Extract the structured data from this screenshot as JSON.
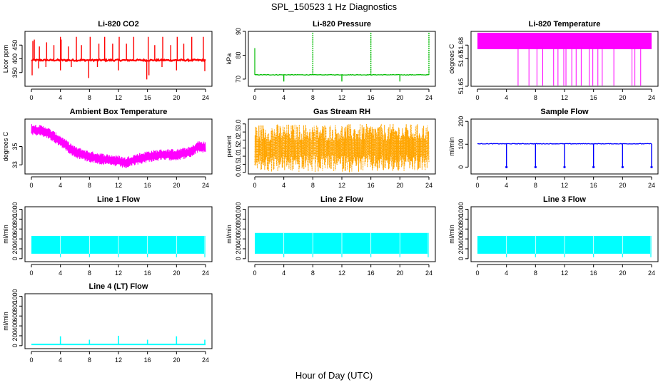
{
  "figure": {
    "title": "SPL_150523  1 Hz Diagnostics",
    "xlabel": "Hour of Day (UTC)"
  },
  "chart_data": [
    {
      "type": "line",
      "title": "Li-820 CO2",
      "ylabel": "Licor ppm",
      "color": "#ff0000",
      "xlim": [
        0,
        24
      ],
      "ylim": [
        300,
        500
      ],
      "xticks": [
        "0",
        "4",
        "8",
        "12",
        "16",
        "20",
        "24"
      ],
      "yticks": [
        {
          "v": 350,
          "label": "350"
        },
        {
          "v": 400,
          "label": "400"
        },
        {
          "v": 450,
          "label": "450"
        }
      ],
      "baseline": 395,
      "noise": 10,
      "spikes": [
        {
          "x": 0.2,
          "y": 465
        },
        {
          "x": 0.4,
          "y": 470
        },
        {
          "x": 1.1,
          "y": 445
        },
        {
          "x": 2.1,
          "y": 460
        },
        {
          "x": 3.1,
          "y": 450
        },
        {
          "x": 4.0,
          "y": 480
        },
        {
          "x": 4.1,
          "y": 470
        },
        {
          "x": 5.1,
          "y": 445
        },
        {
          "x": 6.2,
          "y": 480
        },
        {
          "x": 6.9,
          "y": 450
        },
        {
          "x": 8.1,
          "y": 480
        },
        {
          "x": 9.3,
          "y": 455
        },
        {
          "x": 10.1,
          "y": 480
        },
        {
          "x": 11.2,
          "y": 455
        },
        {
          "x": 12.1,
          "y": 480
        },
        {
          "x": 13.1,
          "y": 455
        },
        {
          "x": 14.1,
          "y": 480
        },
        {
          "x": 16.1,
          "y": 480
        },
        {
          "x": 17.0,
          "y": 450
        },
        {
          "x": 18.1,
          "y": 480
        },
        {
          "x": 19.2,
          "y": 450
        },
        {
          "x": 20.1,
          "y": 480
        },
        {
          "x": 21.0,
          "y": 455
        },
        {
          "x": 22.1,
          "y": 480
        },
        {
          "x": 23.7,
          "y": 480
        }
      ],
      "dips": [
        {
          "x": 0.1,
          "y": 340
        },
        {
          "x": 1.0,
          "y": 365
        },
        {
          "x": 2.0,
          "y": 370
        },
        {
          "x": 4.0,
          "y": 358
        },
        {
          "x": 5.5,
          "y": 370
        },
        {
          "x": 7.9,
          "y": 330
        },
        {
          "x": 9.1,
          "y": 370
        },
        {
          "x": 12.0,
          "y": 358
        },
        {
          "x": 15.9,
          "y": 325
        },
        {
          "x": 16.2,
          "y": 340
        },
        {
          "x": 18.0,
          "y": 370
        },
        {
          "x": 20.0,
          "y": 358
        },
        {
          "x": 23.9,
          "y": 355
        }
      ]
    },
    {
      "type": "line",
      "title": "Li-820 Pressure",
      "ylabel": "kPa",
      "color": "#00bb00",
      "xlim": [
        0,
        24
      ],
      "ylim": [
        67,
        90
      ],
      "xticks": [
        "0",
        "4",
        "8",
        "12",
        "16",
        "20",
        "24"
      ],
      "yticks": [
        {
          "v": 70,
          "label": "70"
        },
        {
          "v": 80,
          "label": "80"
        },
        {
          "v": 90,
          "label": "90"
        }
      ],
      "baseline": 71.8,
      "initial": 83,
      "spikes": [
        {
          "x": 8.0,
          "y": 90
        },
        {
          "x": 16.0,
          "y": 90
        },
        {
          "x": 24.0,
          "y": 90
        }
      ],
      "dips": [
        {
          "x": 4.0,
          "y": 69
        },
        {
          "x": 12.0,
          "y": 69
        },
        {
          "x": 20.0,
          "y": 69
        }
      ]
    },
    {
      "type": "line",
      "title": "Li-820 Temperature",
      "ylabel": "degrees C",
      "color": "#ff00ff",
      "xlim": [
        0,
        24
      ],
      "ylim": [
        51.65,
        51.69
      ],
      "xticks": [
        "0",
        "4",
        "8",
        "12",
        "16",
        "20",
        "24"
      ],
      "yticks": [
        {
          "v": 51.65,
          "label": "51.65"
        },
        {
          "v": 51.67,
          "label": "51.67"
        },
        {
          "v": 51.68,
          "label": "51.68"
        }
      ],
      "band": [
        51.677,
        51.689
      ],
      "drops": [
        5.6,
        7.1,
        8.2,
        9.0,
        10.5,
        11.1,
        11.9,
        12.2,
        13.0,
        13.6,
        14.3,
        15.4,
        15.9,
        16.6,
        17.2,
        18.8,
        21.3,
        21.7,
        22.5
      ]
    },
    {
      "type": "line",
      "title": "Ambient Box Temperature",
      "ylabel": "degrees C",
      "color": "#ff00ff",
      "xlim": [
        0,
        24
      ],
      "ylim": [
        32,
        38
      ],
      "xticks": [
        "0",
        "4",
        "8",
        "12",
        "16",
        "20",
        "24"
      ],
      "yticks": [
        {
          "v": 33,
          "label": "33"
        },
        {
          "v": 35,
          "label": "35"
        }
      ],
      "curve": [
        [
          0,
          36.9
        ],
        [
          2,
          36.6
        ],
        [
          4,
          35.6
        ],
        [
          6,
          34.4
        ],
        [
          8,
          33.9
        ],
        [
          10,
          33.6
        ],
        [
          12,
          33.4
        ],
        [
          13,
          33.2
        ],
        [
          14,
          33.5
        ],
        [
          16,
          33.9
        ],
        [
          18,
          34.1
        ],
        [
          20,
          34.1
        ],
        [
          22,
          34.4
        ],
        [
          23,
          35.0
        ],
        [
          24,
          34.9
        ]
      ],
      "spread": 0.9
    },
    {
      "type": "line",
      "title": "Gas Stream RH",
      "ylabel": "percent",
      "color": "#ffa500",
      "xlim": [
        0,
        24
      ],
      "ylim": [
        -0.1,
        3.3
      ],
      "xticks": [
        "0",
        "4",
        "8",
        "12",
        "16",
        "20",
        "24"
      ],
      "yticks": [
        {
          "v": 0.0,
          "label": "0.0"
        },
        {
          "v": 0.5,
          "label": "0.5"
        },
        {
          "v": 1.0,
          "label": "1.0"
        },
        {
          "v": 1.5,
          "label": "1.5"
        },
        {
          "v": 2.0,
          "label": "2.0"
        },
        {
          "v": 2.5,
          "label": "2.5"
        },
        {
          "v": 3.0,
          "label": "3.0"
        }
      ],
      "center": 1.5,
      "amplitude": 1.5
    },
    {
      "type": "line",
      "title": "Sample Flow",
      "ylabel": "ml/min",
      "color": "#0000ff",
      "xlim": [
        0,
        24
      ],
      "ylim": [
        -30,
        210
      ],
      "xticks": [
        "0",
        "4",
        "8",
        "12",
        "16",
        "20",
        "24"
      ],
      "yticks": [
        {
          "v": 0,
          "label": "0"
        },
        {
          "v": 100,
          "label": "100"
        },
        {
          "v": 200,
          "label": "200"
        }
      ],
      "baseline": 102,
      "dips": [
        {
          "x": 4.0,
          "y": 0
        },
        {
          "x": 8.0,
          "y": 0
        },
        {
          "x": 12.0,
          "y": 0
        },
        {
          "x": 16.0,
          "y": 0
        },
        {
          "x": 20.0,
          "y": 0
        },
        {
          "x": 24.0,
          "y": 0
        }
      ]
    },
    {
      "type": "line",
      "title": "Line 1 Flow",
      "ylabel": "ml/min",
      "color": "#00ffff",
      "xlim": [
        0,
        24
      ],
      "ylim": [
        -60,
        1050
      ],
      "xticks": [
        "0",
        "4",
        "8",
        "12",
        "16",
        "20",
        "24"
      ],
      "yticks": [
        {
          "v": 0,
          "label": "0"
        },
        {
          "v": 200,
          "label": "200"
        },
        {
          "v": 400,
          "label": "400"
        },
        {
          "v": 600,
          "label": "600"
        },
        {
          "v": 800,
          "label": "800"
        },
        {
          "v": 1000,
          "label": "1000"
        }
      ],
      "band": [
        100,
        460
      ],
      "gaps": [
        4.0,
        8.0,
        12.0,
        16.0,
        20.0,
        23.9
      ]
    },
    {
      "type": "line",
      "title": "Line 2 Flow",
      "ylabel": "ml/min",
      "color": "#00ffff",
      "xlim": [
        0,
        24
      ],
      "ylim": [
        -60,
        1050
      ],
      "xticks": [
        "0",
        "4",
        "8",
        "12",
        "16",
        "20",
        "24"
      ],
      "yticks": [
        {
          "v": 0,
          "label": "0"
        },
        {
          "v": 200,
          "label": "200"
        },
        {
          "v": 400,
          "label": "400"
        },
        {
          "v": 600,
          "label": "600"
        },
        {
          "v": 800,
          "label": "800"
        },
        {
          "v": 1000,
          "label": "1000"
        }
      ],
      "band": [
        100,
        520
      ],
      "gaps": [
        4.0,
        8.0,
        12.0,
        16.0,
        20.0,
        23.9
      ]
    },
    {
      "type": "line",
      "title": "Line 3 Flow",
      "ylabel": "ml/min",
      "color": "#00ffff",
      "xlim": [
        0,
        24
      ],
      "ylim": [
        -60,
        1050
      ],
      "xticks": [
        "0",
        "4",
        "8",
        "12",
        "16",
        "20",
        "24"
      ],
      "yticks": [
        {
          "v": 0,
          "label": "0"
        },
        {
          "v": 200,
          "label": "200"
        },
        {
          "v": 400,
          "label": "400"
        },
        {
          "v": 600,
          "label": "600"
        },
        {
          "v": 800,
          "label": "800"
        },
        {
          "v": 1000,
          "label": "1000"
        }
      ],
      "band": [
        100,
        460
      ],
      "gaps": [
        4.0,
        8.0,
        12.0,
        16.0,
        20.0,
        23.9
      ]
    },
    {
      "type": "line",
      "title": "Line 4 (LT) Flow",
      "ylabel": "ml/min",
      "color": "#00ffff",
      "xlim": [
        0,
        24
      ],
      "ylim": [
        -60,
        1050
      ],
      "xticks": [
        "0",
        "4",
        "8",
        "12",
        "16",
        "20",
        "24"
      ],
      "yticks": [
        {
          "v": 0,
          "label": "0"
        },
        {
          "v": 200,
          "label": "200"
        },
        {
          "v": 400,
          "label": "400"
        },
        {
          "v": 600,
          "label": "600"
        },
        {
          "v": 800,
          "label": "800"
        },
        {
          "v": 1000,
          "label": "1000"
        }
      ],
      "baseline": 25,
      "spikes": [
        {
          "x": 4.0,
          "y": 190
        },
        {
          "x": 8.0,
          "y": 120
        },
        {
          "x": 12.0,
          "y": 200
        },
        {
          "x": 16.0,
          "y": 120
        },
        {
          "x": 20.0,
          "y": 190
        },
        {
          "x": 23.9,
          "y": 120
        }
      ]
    }
  ]
}
